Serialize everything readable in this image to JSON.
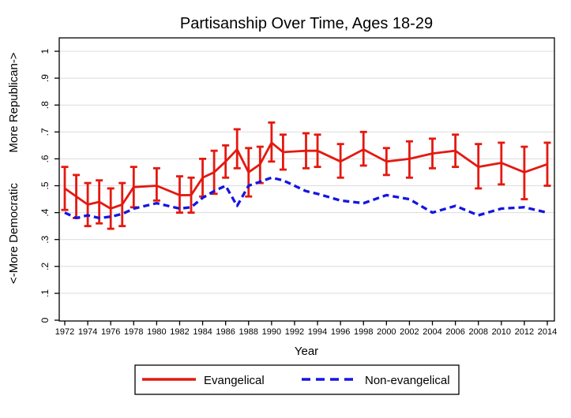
{
  "chart_data": {
    "type": "line",
    "title": "Partisanship Over Time, Ages 18-29",
    "xlabel": "Year",
    "ylabel_top": "More Republican->",
    "ylabel_bottom": "<-More Democratic",
    "xlim": [
      1971.5,
      2014.6
    ],
    "ylim": [
      0,
      1
    ],
    "grid": true,
    "legend_position": "bottom",
    "y_tick_values": [
      0,
      0.1,
      0.2,
      0.3,
      0.4,
      0.5,
      0.6,
      0.7,
      0.8,
      0.9,
      1
    ],
    "y_tick_labels": [
      "0",
      ".1",
      ".2",
      ".3",
      ".4",
      ".5",
      ".6",
      ".7",
      ".8",
      ".9",
      "1"
    ],
    "x_tick_values": [
      1972,
      1974,
      1976,
      1978,
      1980,
      1982,
      1984,
      1986,
      1988,
      1990,
      1992,
      1994,
      1996,
      1998,
      2000,
      2002,
      2004,
      2006,
      2008,
      2010,
      2012,
      2014
    ],
    "x_tick_labels": [
      "1972",
      "1974",
      "1976",
      "1978",
      "1980",
      "1982",
      "1984",
      "1986",
      "1988",
      "1990",
      "1992",
      "1994",
      "1996",
      "1998",
      "2000",
      "2002",
      "2004",
      "2006",
      "2008",
      "2010",
      "2012",
      "2014"
    ],
    "x": [
      1972,
      1973,
      1974,
      1975,
      1976,
      1977,
      1978,
      1980,
      1982,
      1983,
      1984,
      1985,
      1986,
      1987,
      1988,
      1989,
      1990,
      1991,
      1993,
      1994,
      1996,
      1998,
      2000,
      2002,
      2004,
      2006,
      2008,
      2010,
      2012,
      2014
    ],
    "series": [
      {
        "name": "Evangelical",
        "style": "solid",
        "color": "#e41910",
        "values": [
          0.49,
          0.46,
          0.43,
          0.44,
          0.415,
          0.43,
          0.495,
          0.5,
          0.465,
          0.465,
          0.53,
          0.55,
          0.59,
          0.635,
          0.55,
          0.58,
          0.66,
          0.625,
          0.63,
          0.63,
          0.59,
          0.635,
          0.59,
          0.6,
          0.62,
          0.63,
          0.57,
          0.585,
          0.55,
          0.58
        ],
        "ci_low": [
          0.41,
          0.38,
          0.35,
          0.36,
          0.34,
          0.35,
          0.42,
          0.445,
          0.4,
          0.4,
          0.46,
          0.47,
          0.53,
          0.565,
          0.46,
          0.51,
          0.59,
          0.56,
          0.565,
          0.57,
          0.53,
          0.575,
          0.54,
          0.53,
          0.565,
          0.57,
          0.49,
          0.505,
          0.45,
          0.5
        ],
        "ci_high": [
          0.57,
          0.54,
          0.51,
          0.52,
          0.49,
          0.51,
          0.57,
          0.565,
          0.535,
          0.53,
          0.6,
          0.63,
          0.65,
          0.71,
          0.64,
          0.645,
          0.735,
          0.69,
          0.695,
          0.69,
          0.655,
          0.7,
          0.64,
          0.665,
          0.675,
          0.69,
          0.655,
          0.66,
          0.645,
          0.66
        ]
      },
      {
        "name": "Non-evangelical",
        "style": "dashed",
        "color": "#1515e0",
        "values": [
          0.4,
          0.38,
          0.39,
          0.38,
          0.385,
          0.395,
          0.415,
          0.435,
          0.415,
          0.42,
          0.455,
          0.48,
          0.5,
          0.425,
          0.5,
          0.515,
          0.53,
          0.52,
          0.48,
          0.47,
          0.445,
          0.435,
          0.465,
          0.45,
          0.4,
          0.425,
          0.39,
          0.415,
          0.42,
          0.4
        ]
      }
    ],
    "colors": {
      "evangelical": "#e41910",
      "non_evangelical": "#1515e0",
      "gridline": "#dcdcdc",
      "axis": "#000000",
      "background": "#ffffff"
    }
  }
}
